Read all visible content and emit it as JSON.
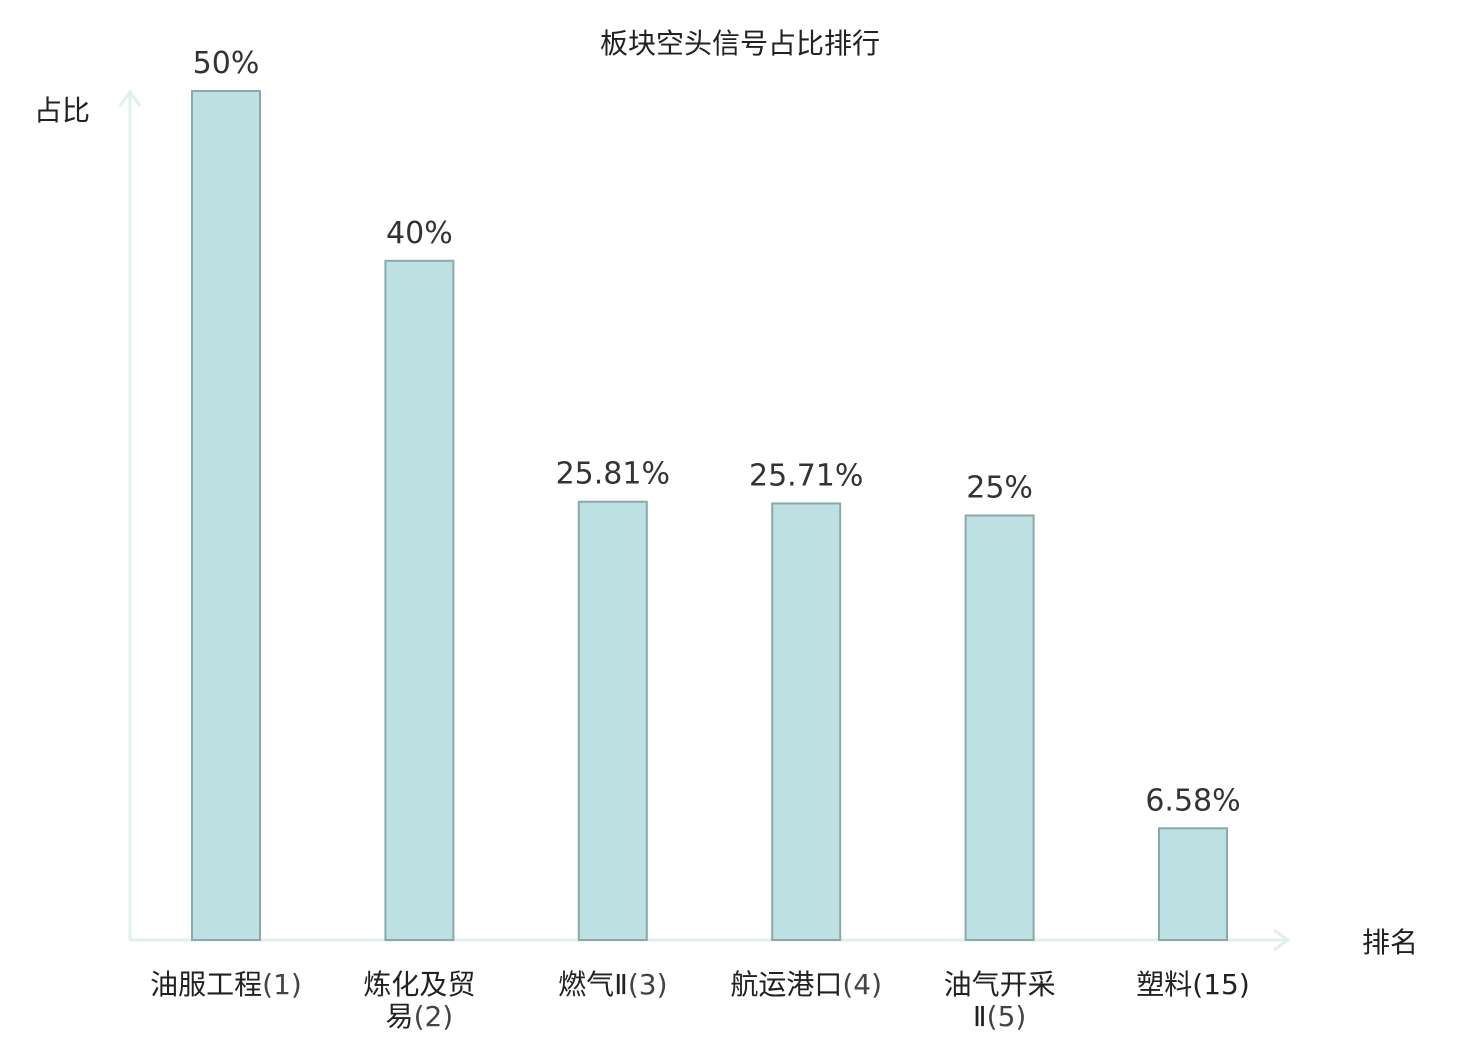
{
  "chart_data": {
    "type": "bar",
    "title": "板块空头信号占比排行",
    "xlabel": "排名",
    "ylabel": "占比",
    "categories": [
      {
        "lines": [
          {
            "name": "油服工程",
            "rank": "(1)"
          }
        ],
        "highlight": false
      },
      {
        "lines": [
          {
            "name": "炼化及贸",
            "rank": ""
          },
          {
            "name": "易",
            "rank": "(2)"
          }
        ],
        "highlight": false
      },
      {
        "lines": [
          {
            "name": "燃气Ⅱ",
            "rank": "(3)"
          }
        ],
        "highlight": false
      },
      {
        "lines": [
          {
            "name": "航运港口",
            "rank": "(4)"
          }
        ],
        "highlight": false
      },
      {
        "lines": [
          {
            "name": "油气开采",
            "rank": ""
          },
          {
            "name": "Ⅱ",
            "rank": "(5)"
          }
        ],
        "highlight": false
      },
      {
        "lines": [
          {
            "name": "塑料",
            "rank": "(15)"
          }
        ],
        "highlight": true
      }
    ],
    "values": [
      50,
      40,
      25.81,
      25.71,
      25,
      6.58
    ],
    "value_labels": [
      "50%",
      "40%",
      "25.81%",
      "25.71%",
      "25%",
      "6.58%"
    ],
    "ylim": [
      0,
      50
    ],
    "grid": false,
    "legend": "none",
    "colors": {
      "bar_fill": "#bde0e3",
      "bar_stroke": "#8aa9ac",
      "axis": "#dff1ef",
      "highlight_label": "#e0191b",
      "text": "#222222"
    }
  }
}
